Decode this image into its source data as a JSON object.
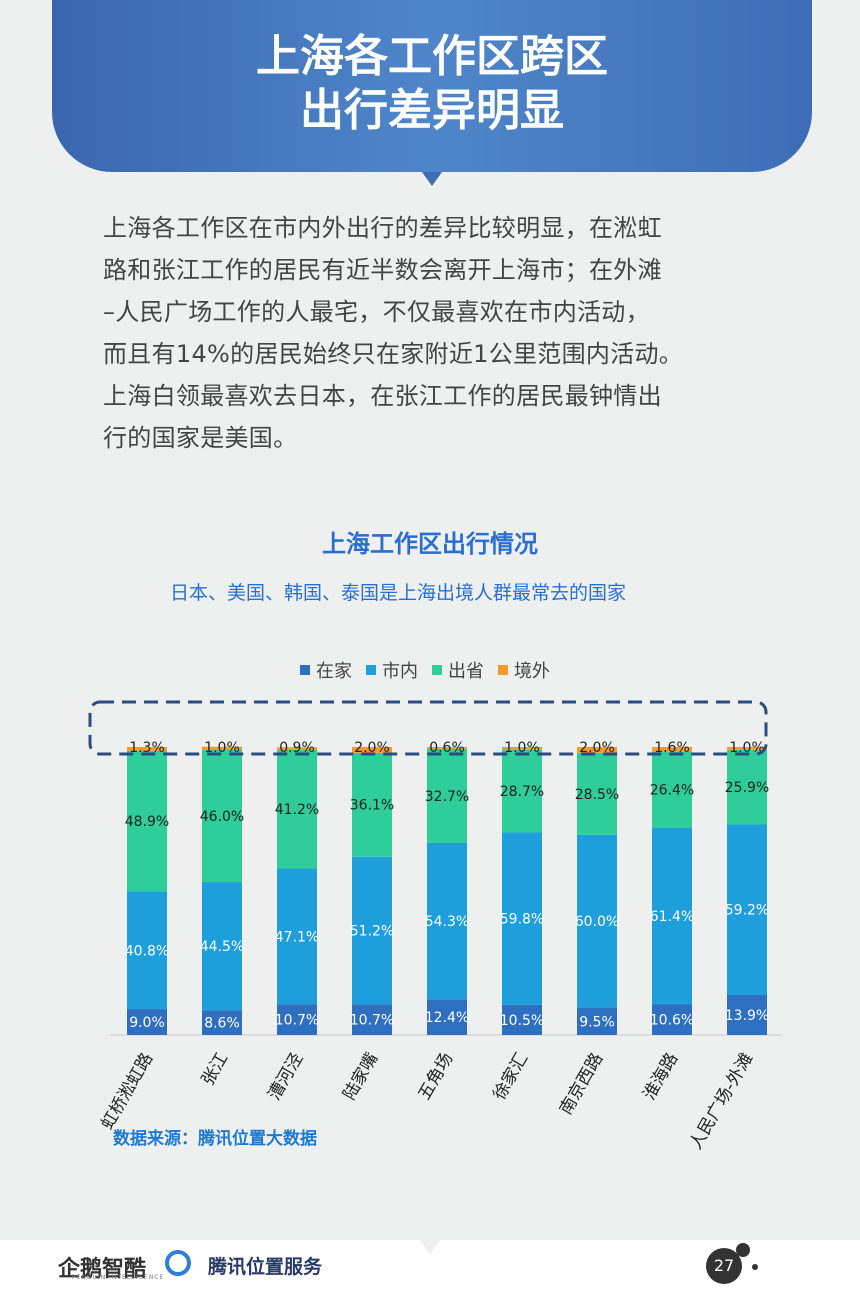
{
  "header": {
    "title_line1": "上海各工作区跨区",
    "title_line2": "出行差异明显"
  },
  "intro": {
    "lines": [
      "上海各工作区在市内外出行的差异比较明显，在淞虹",
      "路和张江工作的居民有近半数会离开上海市；在外滩",
      "–人民广场工作的人最宅，不仅最喜欢在市内活动，",
      "而且有14%的居民始终只在家附近1公里范围内活动。",
      "上海白领最喜欢去日本，在张江工作的居民最钟情出",
      "行的国家是美国。"
    ]
  },
  "chart_data": {
    "type": "bar",
    "stacked": true,
    "title": "上海工作区出行情况",
    "subtitle": "日本、美国、韩国、泰国是上海出境人群最常去的国家",
    "categories": [
      "虹桥淞虹路",
      "张江",
      "漕河泾",
      "陆家嘴",
      "五角场",
      "徐家汇",
      "南京西路",
      "淮海路",
      "人民广场-外滩"
    ],
    "series": [
      {
        "name": "在家",
        "color": "#2f6fc0",
        "values": [
          9.0,
          8.6,
          10.7,
          10.7,
          12.4,
          10.5,
          9.5,
          10.6,
          13.9
        ],
        "labels": [
          "9.0%",
          "8.6%",
          "10.7%",
          "10.7%",
          "12.4%",
          "10.5%",
          "9.5%",
          "10.6%",
          "13.9%"
        ]
      },
      {
        "name": "市内",
        "color": "#1e9edb",
        "values": [
          40.8,
          44.5,
          47.1,
          51.2,
          54.3,
          59.8,
          60.0,
          61.4,
          59.2
        ],
        "labels": [
          "40.8%",
          "44.5%",
          "47.1%",
          "51.2%",
          "54.3%",
          "59.8%",
          "60.0%",
          "61.4%",
          "59.2%"
        ]
      },
      {
        "name": "出省",
        "color": "#2fcd9a",
        "values": [
          48.9,
          46.0,
          41.2,
          36.1,
          32.7,
          28.7,
          28.5,
          26.4,
          25.9
        ],
        "labels": [
          "48.9%",
          "46.0%",
          "41.2%",
          "36.1%",
          "32.7%",
          "28.7%",
          "28.5%",
          "26.4%",
          "25.9%"
        ]
      },
      {
        "name": "境外",
        "color": "#f39a2b",
        "values": [
          1.3,
          1.0,
          0.9,
          2.0,
          0.6,
          1.0,
          2.0,
          1.6,
          1.0
        ],
        "labels": [
          "1.3%",
          "1.0%",
          "0.9%",
          "2.0%",
          "0.6%",
          "1.0%",
          "2.0%",
          "1.6%",
          "1.0%"
        ]
      }
    ],
    "ylim": [
      0,
      100
    ],
    "legend_position": "top-center",
    "grid": false,
    "highlight": "dashed box around 境外 row"
  },
  "source": "数据来源：腾讯位置大数据",
  "footer": {
    "brand1": "企鹅智酷",
    "brand1_sub": "PENGUIN INTELLIGENCE",
    "brand2": "腾讯位置服务",
    "page_number": "27"
  },
  "colors": {
    "banner": "#3e6db7",
    "accent": "#2a6fd0"
  },
  "icons": {
    "brand1": "penguin-icon",
    "brand2": "location-icon"
  }
}
